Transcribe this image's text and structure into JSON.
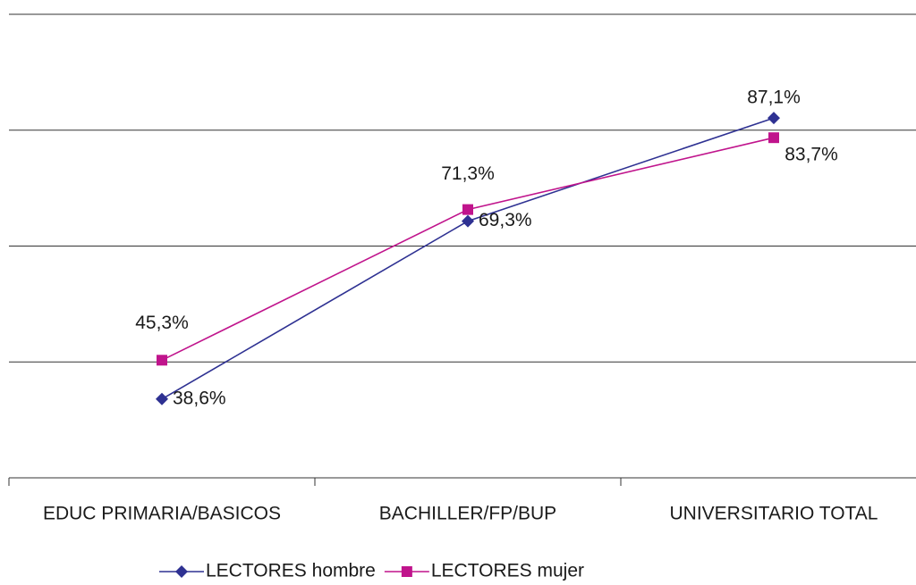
{
  "chart_data": {
    "type": "line",
    "categories": [
      "EDUC PRIMARIA/BASICOS",
      "BACHILLER/FP/BUP",
      "UNIVERSITARIO TOTAL"
    ],
    "series": [
      {
        "name": "LECTORES hombre",
        "color": "#2e3192",
        "values": [
          38.6,
          69.3,
          87.1
        ],
        "value_labels": [
          "38,6%",
          "69,3%",
          "87,1%"
        ]
      },
      {
        "name": "LECTORES mujer",
        "color": "#c0148c",
        "values": [
          45.3,
          71.3,
          83.7
        ],
        "value_labels": [
          "45,3%",
          "71,3%",
          "83,7%"
        ]
      }
    ],
    "ylim": [
      25,
      105
    ],
    "yticks": [
      25,
      45,
      65,
      85,
      105
    ],
    "grid": true,
    "legend": "bottom"
  }
}
